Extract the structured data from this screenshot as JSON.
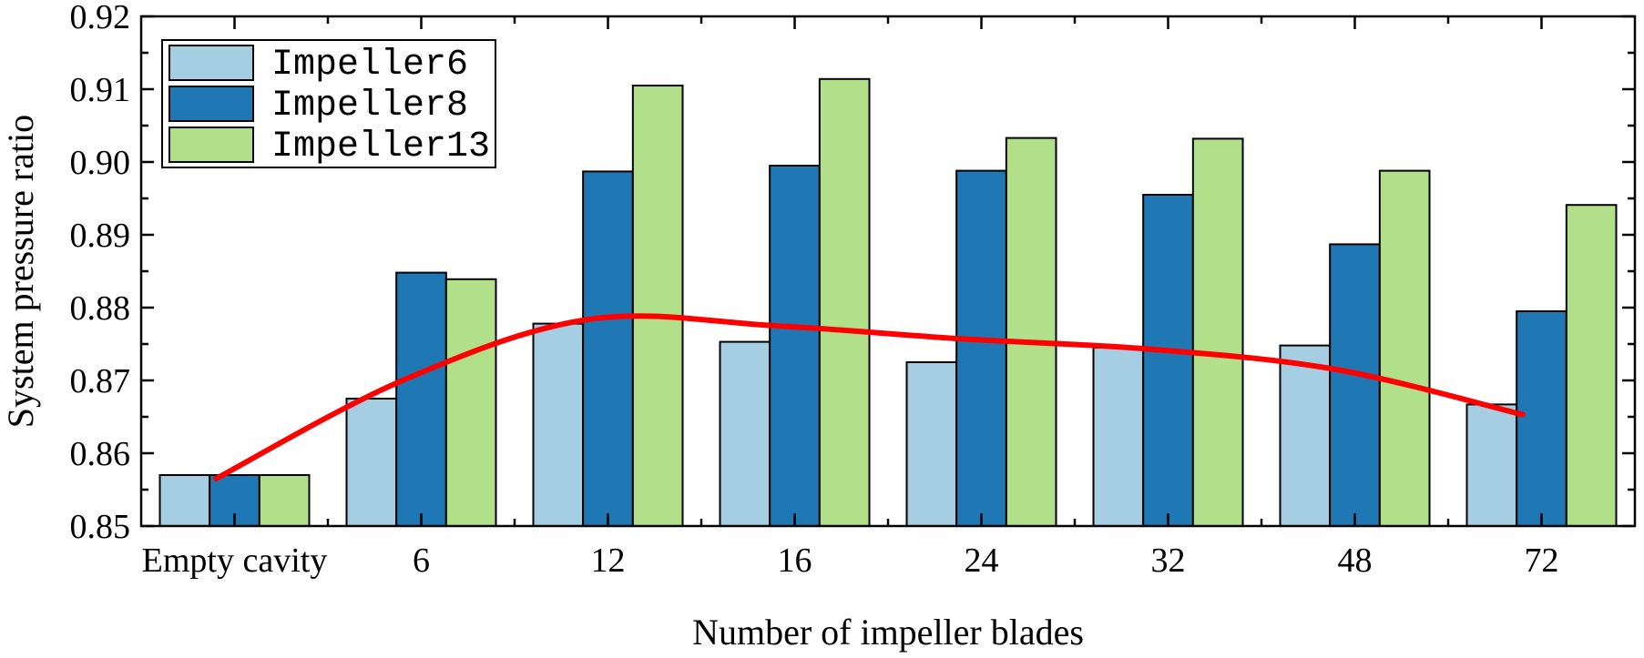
{
  "chart_data": {
    "type": "bar",
    "title": "",
    "xlabel": "Number of impeller blades",
    "ylabel": "System pressure ratio",
    "ylim": [
      0.85,
      0.92
    ],
    "yticks": [
      "0.85",
      "0.86",
      "0.87",
      "0.88",
      "0.89",
      "0.90",
      "0.91",
      "0.92"
    ],
    "categories": [
      "Empty cavity",
      "6",
      "12",
      "16",
      "24",
      "32",
      "48",
      "72"
    ],
    "series": [
      {
        "name": "Impeller6",
        "color": "#a6cee3",
        "values": [
          0.857,
          0.8675,
          0.8778,
          0.8753,
          0.8725,
          0.8745,
          0.8748,
          0.8667
        ]
      },
      {
        "name": "Impeller8",
        "color": "#1f78b4",
        "values": [
          0.857,
          0.8848,
          0.8987,
          0.8995,
          0.8988,
          0.8955,
          0.8887,
          0.8795
        ]
      },
      {
        "name": "Impeller13",
        "color": "#b2df8a",
        "values": [
          0.857,
          0.8839,
          0.9105,
          0.9114,
          0.9033,
          0.9032,
          0.8988,
          0.8941
        ]
      }
    ],
    "trend_line": {
      "color": "#ff0000",
      "points": [
        {
          "x": "Empty cavity",
          "y": 0.8565
        },
        {
          "x": "6",
          "y": 0.87
        },
        {
          "x": "12",
          "y": 0.8784
        },
        {
          "x": "16",
          "y": 0.8775
        },
        {
          "x": "24",
          "y": 0.8757
        },
        {
          "x": "32",
          "y": 0.8743
        },
        {
          "x": "48",
          "y": 0.8715
        },
        {
          "x": "72",
          "y": 0.8653
        }
      ]
    },
    "legend": {
      "position": "top-left",
      "entries": [
        "Impeller6",
        "Impeller8",
        "Impeller13"
      ]
    },
    "grid": false
  }
}
